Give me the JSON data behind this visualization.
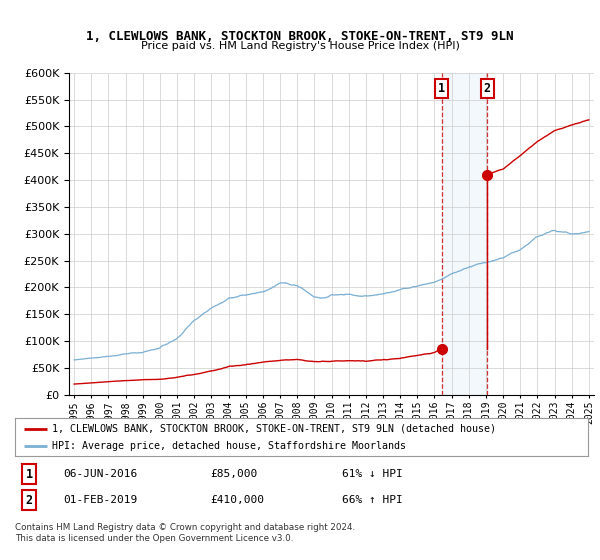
{
  "title": "1, CLEWLOWS BANK, STOCKTON BROOK, STOKE-ON-TRENT, ST9 9LN",
  "subtitle": "Price paid vs. HM Land Registry's House Price Index (HPI)",
  "legend_line1": "1, CLEWLOWS BANK, STOCKTON BROOK, STOKE-ON-TRENT, ST9 9LN (detached house)",
  "legend_line2": "HPI: Average price, detached house, Staffordshire Moorlands",
  "table_row1_date": "06-JUN-2016",
  "table_row1_price": "£85,000",
  "table_row1_hpi": "61% ↓ HPI",
  "table_row2_date": "01-FEB-2019",
  "table_row2_price": "£410,000",
  "table_row2_hpi": "66% ↑ HPI",
  "footer": "Contains HM Land Registry data © Crown copyright and database right 2024.\nThis data is licensed under the Open Government Licence v3.0.",
  "sale1_year": 2016.43,
  "sale1_price": 85000,
  "sale2_year": 2019.08,
  "sale2_price": 410000,
  "red_color": "#cc0000",
  "blue_color": "#7bafd4",
  "shade_color": "#d0e4f5",
  "background_color": "#ffffff",
  "grid_color": "#cccccc",
  "ylim_max": 600000,
  "xlabel_start": 1995,
  "xlabel_end": 2025
}
